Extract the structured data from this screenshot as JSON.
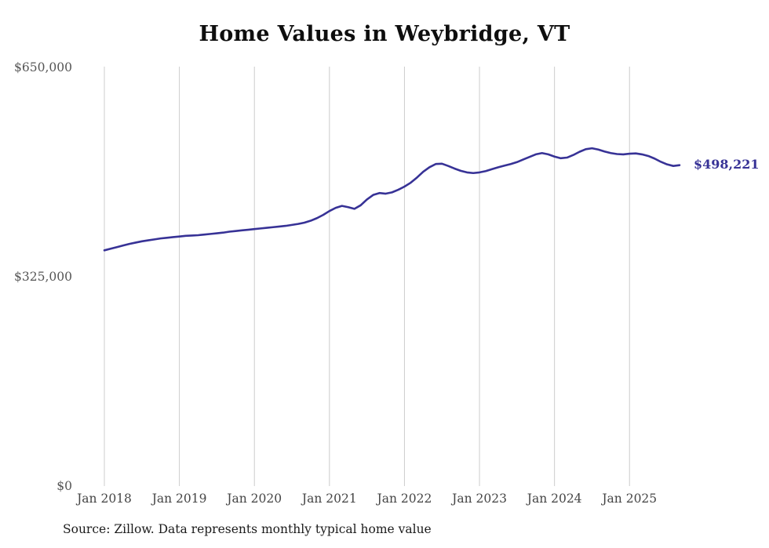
{
  "chart": {
    "title": "Home Values in Weybridge, VT",
    "source": "Source: Zillow. Data represents monthly typical home value",
    "end_label": "$498,221"
  },
  "chart_data": {
    "type": "line",
    "title": "Home Values in Weybridge, VT",
    "series_name": "Monthly typical home value",
    "legend": "none",
    "grid": "vertical-only",
    "line_color": "#373296",
    "grid_color": "#cccccc",
    "ylim": [
      0,
      650000
    ],
    "y_ticks": [
      {
        "value": 0,
        "label": "$0"
      },
      {
        "value": 325000,
        "label": "$325,000"
      },
      {
        "value": 650000,
        "label": "$650,000"
      }
    ],
    "x_ticks": [
      {
        "index": 0,
        "label": "Jan 2018"
      },
      {
        "index": 12,
        "label": "Jan 2019"
      },
      {
        "index": 24,
        "label": "Jan 2020"
      },
      {
        "index": 36,
        "label": "Jan 2021"
      },
      {
        "index": 48,
        "label": "Jan 2022"
      },
      {
        "index": 60,
        "label": "Jan 2023"
      },
      {
        "index": 72,
        "label": "Jan 2024"
      },
      {
        "index": 84,
        "label": "Jan 2025"
      }
    ],
    "months": [
      "2018-01",
      "2018-02",
      "2018-03",
      "2018-04",
      "2018-05",
      "2018-06",
      "2018-07",
      "2018-08",
      "2018-09",
      "2018-10",
      "2018-11",
      "2018-12",
      "2019-01",
      "2019-02",
      "2019-03",
      "2019-04",
      "2019-05",
      "2019-06",
      "2019-07",
      "2019-08",
      "2019-09",
      "2019-10",
      "2019-11",
      "2019-12",
      "2020-01",
      "2020-02",
      "2020-03",
      "2020-04",
      "2020-05",
      "2020-06",
      "2020-07",
      "2020-08",
      "2020-09",
      "2020-10",
      "2020-11",
      "2020-12",
      "2021-01",
      "2021-02",
      "2021-03",
      "2021-04",
      "2021-05",
      "2021-06",
      "2021-07",
      "2021-08",
      "2021-09",
      "2021-10",
      "2021-11",
      "2021-12",
      "2022-01",
      "2022-02",
      "2022-03",
      "2022-04",
      "2022-05",
      "2022-06",
      "2022-07",
      "2022-08",
      "2022-09",
      "2022-10",
      "2022-11",
      "2022-12",
      "2023-01",
      "2023-02",
      "2023-03",
      "2023-04",
      "2023-05",
      "2023-06",
      "2023-07",
      "2023-08",
      "2023-09",
      "2023-10",
      "2023-11",
      "2023-12",
      "2024-01",
      "2024-02",
      "2024-03",
      "2024-04",
      "2024-05",
      "2024-06",
      "2024-07",
      "2024-08",
      "2024-09",
      "2024-10",
      "2024-11",
      "2024-12",
      "2025-01",
      "2025-02",
      "2025-03",
      "2025-04",
      "2025-05",
      "2025-06",
      "2025-07",
      "2025-08",
      "2025-09"
    ],
    "values": [
      366000,
      368500,
      371000,
      373500,
      376000,
      378000,
      380000,
      381500,
      383000,
      384500,
      385500,
      386500,
      387500,
      388500,
      389000,
      389500,
      390500,
      391500,
      392500,
      393500,
      395000,
      396000,
      397000,
      398000,
      399000,
      400000,
      401000,
      402000,
      403000,
      404000,
      405500,
      407000,
      409000,
      412000,
      416000,
      421000,
      427000,
      432000,
      435000,
      433000,
      430500,
      436000,
      445000,
      452000,
      455000,
      454000,
      456000,
      460000,
      465000,
      471000,
      479000,
      488000,
      495000,
      500000,
      500500,
      497000,
      493000,
      489500,
      487000,
      486000,
      487000,
      489000,
      492000,
      495000,
      497500,
      500000,
      503000,
      507000,
      511000,
      515000,
      517000,
      515000,
      511500,
      509000,
      510000,
      514000,
      519000,
      523000,
      524500,
      522500,
      519500,
      517000,
      515500,
      515000,
      516000,
      516500,
      515000,
      512500,
      508500,
      503500,
      499500,
      497000,
      498221
    ],
    "latest_value": 498221,
    "latest_label": "$498,221"
  }
}
